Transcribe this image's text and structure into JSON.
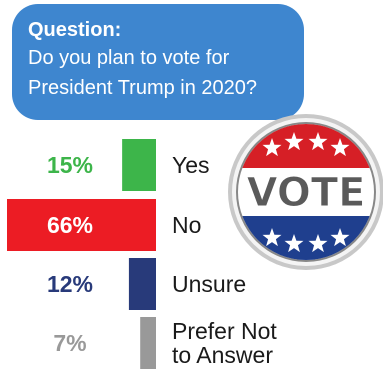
{
  "question": {
    "label": "Question:",
    "line1": "Do you plan to vote for",
    "line2": "President Trump in 2020?"
  },
  "badge_text": "VOTE",
  "chart_data": {
    "type": "bar",
    "orientation": "horizontal",
    "categories": [
      "Yes",
      "No",
      "Unsure",
      "Prefer Not to Answer"
    ],
    "category_lines": [
      [
        "Yes"
      ],
      [
        "No"
      ],
      [
        "Unsure"
      ],
      [
        "Prefer Not",
        "to Answer"
      ]
    ],
    "values": [
      15,
      66,
      12,
      7
    ],
    "value_labels": [
      "15%",
      "66%",
      "12%",
      "7%"
    ],
    "colors": [
      "#3db54a",
      "#ec1c24",
      "#283a7a",
      "#999999"
    ],
    "xlim": [
      0,
      66
    ],
    "grid": false
  }
}
